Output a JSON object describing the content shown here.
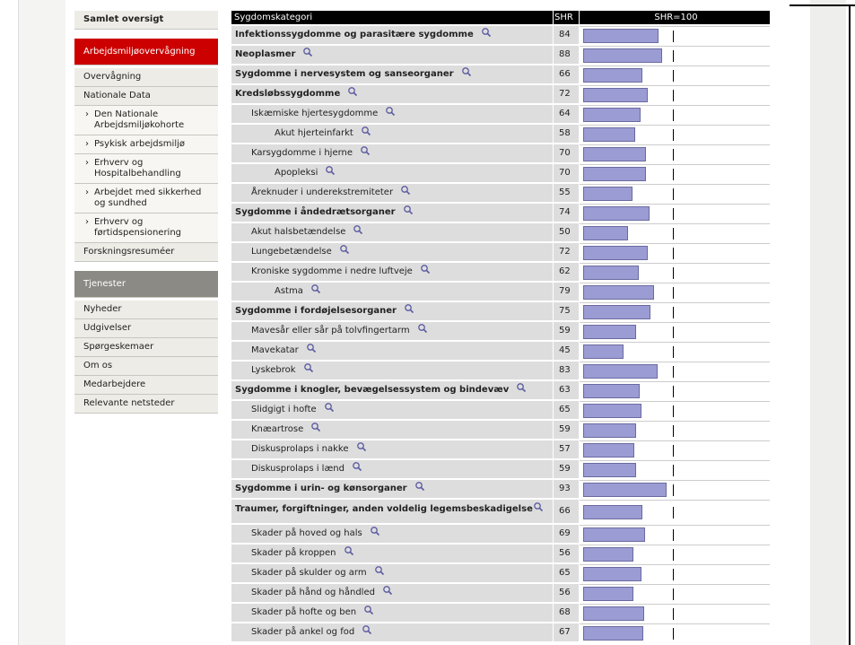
{
  "sidebar": {
    "top": "Samlet oversigt",
    "section1": "Arbejdsmiljøovervågning",
    "links1": [
      "Overvågning",
      "Nationale Data"
    ],
    "sublinks": [
      "Den Nationale Arbejdsmiljøkohorte",
      "Psykisk arbejdsmiljø",
      "Erhverv og Hospitalbehandling",
      "Arbejdet med sikkerhed og sundhed",
      "Erhverv og førtidspensionering"
    ],
    "links1b": [
      "Forskningsresuméer"
    ],
    "section2": "Tjenester",
    "links2": [
      "Nyheder",
      "Udgivelser",
      "Spørgeskemaer",
      "Om os",
      "Medarbejdere",
      "Relevante netsteder"
    ]
  },
  "table": {
    "header": [
      "Sygdomskategori",
      "SHR"
    ],
    "reference": {
      "value": 100,
      "label": "SHR=100"
    },
    "rows": [
      {
        "name": "Infektionssygdomme og parasitære sygdomme",
        "shr": 84
      },
      {
        "name": "Neoplasmer",
        "shr": 88
      },
      {
        "name": "Sygdomme i nervesystem og sanseorganer",
        "shr": 66
      },
      {
        "name": "Kredsløbssygdomme",
        "shr": 72,
        "children": [
          {
            "name": "Iskæmiske hjertesygdomme",
            "shr": 64,
            "children": [
              {
                "name": "Akut hjerteinfarkt",
                "shr": 58
              }
            ]
          },
          {
            "name": "Karsygdomme i hjerne",
            "shr": 70,
            "children": [
              {
                "name": "Apopleksi",
                "shr": 70
              }
            ]
          },
          {
            "name": "Åreknuder i underekstremiteter",
            "shr": 55
          }
        ]
      },
      {
        "name": "Sygdomme i åndedrætsorganer",
        "shr": 74,
        "children": [
          {
            "name": "Akut halsbetændelse",
            "shr": 50
          },
          {
            "name": "Lungebetændelse",
            "shr": 72
          },
          {
            "name": "Kroniske sygdomme i nedre luftveje",
            "shr": 62,
            "children": [
              {
                "name": "Astma",
                "shr": 79
              }
            ]
          }
        ]
      },
      {
        "name": "Sygdomme i fordøjelsesorganer",
        "shr": 75,
        "children": [
          {
            "name": "Mavesår eller sår på tolvfingertarm",
            "shr": 59
          },
          {
            "name": "Mavekatar",
            "shr": 45
          },
          {
            "name": "Lyskebrok",
            "shr": 83
          }
        ]
      },
      {
        "name": "Sygdomme i knogler, bevægelsessystem og bindevæv",
        "shr": 63,
        "children": [
          {
            "name": "Slidgigt i hofte",
            "shr": 65
          },
          {
            "name": "Knæartrose",
            "shr": 59
          },
          {
            "name": "Diskusprolaps i nakke",
            "shr": 57
          },
          {
            "name": "Diskusprolaps i lænd",
            "shr": 59
          }
        ]
      },
      {
        "name": "Sygdomme i urin- og kønsorganer",
        "shr": 93
      },
      {
        "name": "Traumer, forgiftninger, anden voldelig legemsbeskadigelse",
        "shr": 66,
        "children": [
          {
            "name": "Skader på hoved og hals",
            "shr": 69
          },
          {
            "name": "Skader på kroppen",
            "shr": 56
          },
          {
            "name": "Skader på skulder og arm",
            "shr": 65
          },
          {
            "name": "Skader på hånd og håndled",
            "shr": 56
          },
          {
            "name": "Skader på hofte og ben",
            "shr": 68
          },
          {
            "name": "Skader på ankel og fod",
            "shr": 67
          }
        ]
      }
    ]
  }
}
